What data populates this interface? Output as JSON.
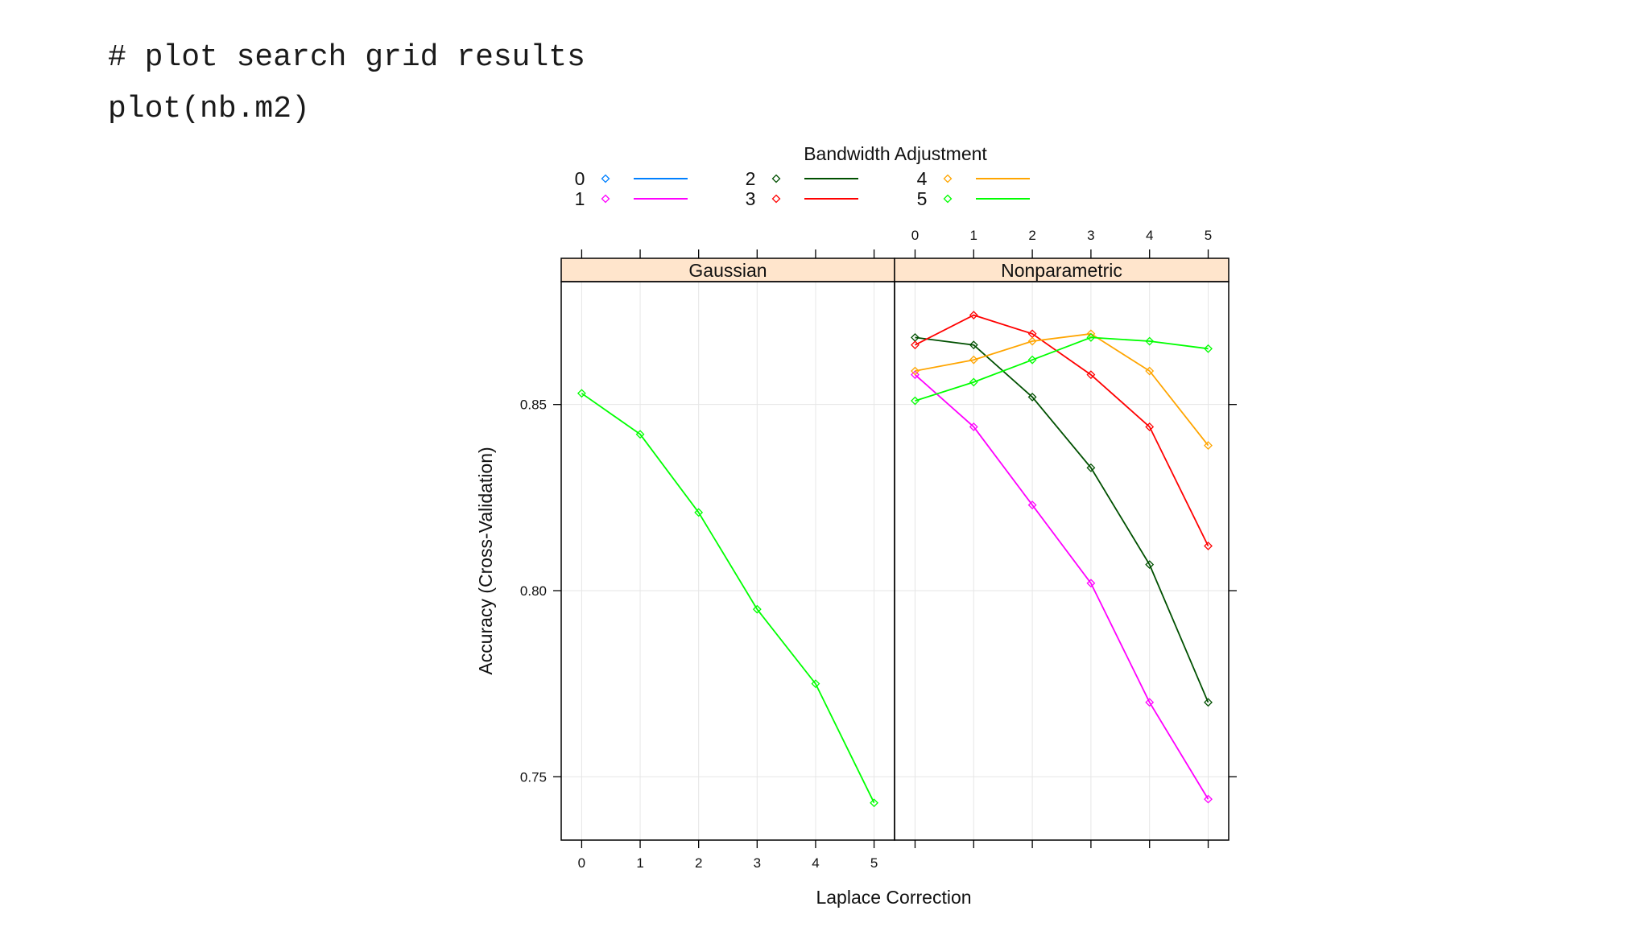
{
  "code": {
    "line1": "# plot search grid results",
    "line2": "plot(nb.m2)"
  },
  "chart_data": {
    "type": "line",
    "xlabel": "Laplace Correction",
    "ylabel": "Accuracy (Cross-Validation)",
    "legend_title": "Bandwidth Adjustment",
    "legend_position": "top",
    "x": [
      0,
      1,
      2,
      3,
      4,
      5
    ],
    "x_ticks": [
      "0",
      "1",
      "2",
      "3",
      "4",
      "5"
    ],
    "y_ticks": [
      0.75,
      0.8,
      0.85
    ],
    "y_tick_labels": [
      "0.75",
      "0.80",
      "0.85"
    ],
    "xlim": [
      -0.35,
      5.35
    ],
    "ylim": [
      0.733,
      0.883
    ],
    "grid": true,
    "legend": [
      {
        "label": "0",
        "color": "#0080ff"
      },
      {
        "label": "1",
        "color": "#ff00ff"
      },
      {
        "label": "2",
        "color": "#005000"
      },
      {
        "label": "3",
        "color": "#ff0000"
      },
      {
        "label": "4",
        "color": "#ffa500"
      },
      {
        "label": "5",
        "color": "#00ff00"
      }
    ],
    "panels": [
      {
        "name": "Gaussian",
        "series": [
          {
            "name": "5",
            "color": "#00ff00",
            "values": [
              0.853,
              0.842,
              0.821,
              0.795,
              0.775,
              0.743
            ]
          }
        ]
      },
      {
        "name": "Nonparametric",
        "series": [
          {
            "name": "1",
            "color": "#ff00ff",
            "values": [
              0.858,
              0.844,
              0.823,
              0.802,
              0.77,
              0.744
            ]
          },
          {
            "name": "2",
            "color": "#005000",
            "values": [
              0.868,
              0.866,
              0.852,
              0.833,
              0.807,
              0.77
            ]
          },
          {
            "name": "3",
            "color": "#ff0000",
            "values": [
              0.866,
              0.874,
              0.869,
              0.858,
              0.844,
              0.812
            ]
          },
          {
            "name": "4",
            "color": "#ffa500",
            "values": [
              0.859,
              0.862,
              0.867,
              0.869,
              0.859,
              0.839
            ]
          },
          {
            "name": "5",
            "color": "#00ff00",
            "values": [
              0.851,
              0.856,
              0.862,
              0.868,
              0.867,
              0.865
            ]
          }
        ]
      }
    ]
  }
}
